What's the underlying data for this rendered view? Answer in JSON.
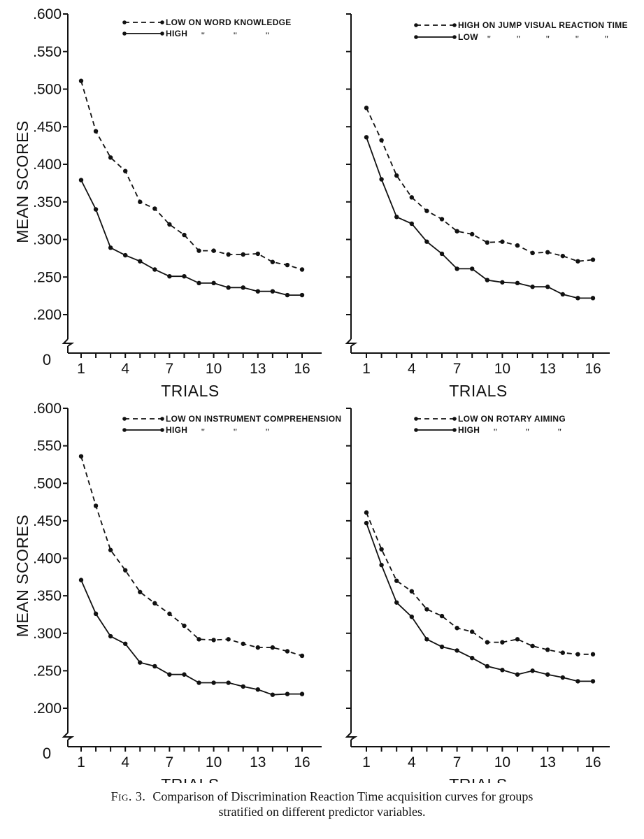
{
  "chart_data": [
    {
      "type": "line",
      "position": "top-left",
      "ylabel": "MEAN SCORES",
      "xlabel": "TRIALS",
      "x_ticks": [
        "1",
        "4",
        "7",
        "10",
        "13",
        "16"
      ],
      "y_ticks": [
        ".600",
        ".550",
        ".500",
        ".450",
        ".400",
        ".350",
        ".300",
        ".250",
        ".200"
      ],
      "y_origin_label": "0",
      "ylim": [
        0.2,
        0.6
      ],
      "xlim": [
        1,
        16
      ],
      "series": [
        {
          "name": "LOW ON WORD KNOWLEDGE",
          "style": "dashed",
          "legend_label": "LOW ON WORD KNOWLEDGE",
          "ditto_marks": [],
          "x": [
            1,
            2,
            3,
            4,
            5,
            6,
            7,
            8,
            9,
            10,
            11,
            12,
            13,
            14,
            15,
            16
          ],
          "values": [
            0.511,
            0.444,
            0.409,
            0.391,
            0.35,
            0.341,
            0.32,
            0.306,
            0.285,
            0.285,
            0.28,
            0.28,
            0.281,
            0.27,
            0.266,
            0.26
          ]
        },
        {
          "name": "HIGH ON WORD KNOWLEDGE",
          "style": "solid",
          "legend_label": "HIGH",
          "ditto_marks": [
            "\"",
            "\"",
            "\""
          ],
          "x": [
            1,
            2,
            3,
            4,
            5,
            6,
            7,
            8,
            9,
            10,
            11,
            12,
            13,
            14,
            15,
            16
          ],
          "values": [
            0.379,
            0.34,
            0.289,
            0.279,
            0.271,
            0.26,
            0.251,
            0.251,
            0.242,
            0.242,
            0.236,
            0.236,
            0.231,
            0.231,
            0.226,
            0.226
          ]
        }
      ]
    },
    {
      "type": "line",
      "position": "top-right",
      "ylabel": "",
      "xlabel": "TRIALS",
      "x_ticks": [
        "1",
        "4",
        "7",
        "10",
        "13",
        "16"
      ],
      "y_ticks": [],
      "y_origin_label": "",
      "ylim": [
        0.2,
        0.6
      ],
      "xlim": [
        1,
        16
      ],
      "series": [
        {
          "name": "HIGH ON JUMP VISUAL REACTION TIME",
          "style": "dashed",
          "legend_label": "HIGH ON JUMP VISUAL REACTION TIME",
          "ditto_marks": [],
          "x": [
            1,
            2,
            3,
            4,
            5,
            6,
            7,
            8,
            9,
            10,
            11,
            12,
            13,
            14,
            15,
            16
          ],
          "values": [
            0.475,
            0.432,
            0.385,
            0.356,
            0.338,
            0.327,
            0.311,
            0.307,
            0.296,
            0.297,
            0.292,
            0.282,
            0.283,
            0.278,
            0.271,
            0.273
          ]
        },
        {
          "name": "LOW ON JUMP VISUAL REACTION TIME",
          "style": "solid",
          "legend_label": "LOW",
          "ditto_marks": [
            "\"",
            "\"",
            "\"",
            "\"",
            "\""
          ],
          "x": [
            1,
            2,
            3,
            4,
            5,
            6,
            7,
            8,
            9,
            10,
            11,
            12,
            13,
            14,
            15,
            16
          ],
          "values": [
            0.436,
            0.38,
            0.33,
            0.321,
            0.297,
            0.281,
            0.261,
            0.261,
            0.246,
            0.243,
            0.242,
            0.237,
            0.237,
            0.227,
            0.222,
            0.222
          ]
        }
      ]
    },
    {
      "type": "line",
      "position": "bottom-left",
      "ylabel": "MEAN SCORES",
      "xlabel": "TRIALS",
      "x_ticks": [
        "1",
        "4",
        "7",
        "10",
        "13",
        "16"
      ],
      "y_ticks": [
        ".600",
        ".550",
        ".500",
        ".450",
        ".400",
        ".350",
        ".300",
        ".250",
        ".200"
      ],
      "y_origin_label": "0",
      "ylim": [
        0.2,
        0.6
      ],
      "xlim": [
        1,
        16
      ],
      "series": [
        {
          "name": "LOW ON INSTRUMENT COMPREHENSION",
          "style": "dashed",
          "legend_label": "LOW ON INSTRUMENT COMPREHENSION",
          "ditto_marks": [],
          "x": [
            1,
            2,
            3,
            4,
            5,
            6,
            7,
            8,
            9,
            10,
            11,
            12,
            13,
            14,
            15,
            16
          ],
          "values": [
            0.536,
            0.47,
            0.411,
            0.384,
            0.355,
            0.34,
            0.326,
            0.31,
            0.292,
            0.291,
            0.292,
            0.286,
            0.281,
            0.281,
            0.276,
            0.27
          ]
        },
        {
          "name": "HIGH ON INSTRUMENT COMPREHENSION",
          "style": "solid",
          "legend_label": "HIGH",
          "ditto_marks": [
            "\"",
            "\"",
            "\""
          ],
          "x": [
            1,
            2,
            3,
            4,
            5,
            6,
            7,
            8,
            9,
            10,
            11,
            12,
            13,
            14,
            15,
            16
          ],
          "values": [
            0.371,
            0.326,
            0.296,
            0.286,
            0.261,
            0.256,
            0.245,
            0.245,
            0.234,
            0.234,
            0.234,
            0.229,
            0.225,
            0.218,
            0.219,
            0.219
          ]
        }
      ]
    },
    {
      "type": "line",
      "position": "bottom-right",
      "ylabel": "",
      "xlabel": "TRIALS",
      "x_ticks": [
        "1",
        "4",
        "7",
        "10",
        "13",
        "16"
      ],
      "y_ticks": [],
      "y_origin_label": "",
      "ylim": [
        0.2,
        0.6
      ],
      "xlim": [
        1,
        16
      ],
      "series": [
        {
          "name": "LOW ON ROTARY AIMING",
          "style": "dashed",
          "legend_label": "LOW ON ROTARY AIMING",
          "ditto_marks": [],
          "x": [
            1,
            2,
            3,
            4,
            5,
            6,
            7,
            8,
            9,
            10,
            11,
            12,
            13,
            14,
            15,
            16
          ],
          "values": [
            0.461,
            0.412,
            0.37,
            0.356,
            0.332,
            0.323,
            0.307,
            0.302,
            0.288,
            0.288,
            0.292,
            0.283,
            0.278,
            0.274,
            0.272,
            0.272
          ]
        },
        {
          "name": "HIGH ON ROTARY AIMING",
          "style": "solid",
          "legend_label": "HIGH",
          "ditto_marks": [
            "\"",
            "\"",
            "\""
          ],
          "x": [
            1,
            2,
            3,
            4,
            5,
            6,
            7,
            8,
            9,
            10,
            11,
            12,
            13,
            14,
            15,
            16
          ],
          "values": [
            0.447,
            0.391,
            0.341,
            0.322,
            0.292,
            0.282,
            0.277,
            0.267,
            0.256,
            0.251,
            0.245,
            0.25,
            0.245,
            0.241,
            0.236,
            0.236
          ]
        }
      ]
    }
  ],
  "caption": {
    "figure_label": "Fig. 3.",
    "line1": "Comparison of Discrimination Reaction Time acquisition curves for groups",
    "line2": "stratified on different predictor variables."
  }
}
